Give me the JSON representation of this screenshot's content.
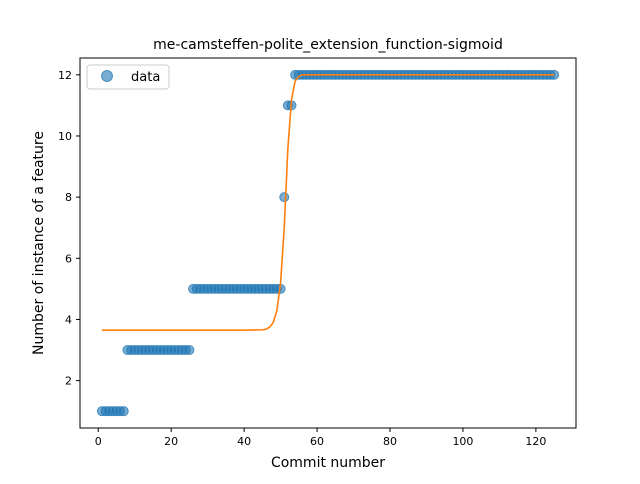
{
  "chart_data": {
    "type": "scatter",
    "title": "me-camsteffen-polite_extension_function-sigmoid",
    "xlabel": "Commit number",
    "ylabel": "Number of instance of a feature",
    "xlim": [
      -5,
      131
    ],
    "ylim": [
      0.45,
      12.55
    ],
    "x_ticks": [
      0,
      20,
      40,
      60,
      80,
      100,
      120
    ],
    "y_ticks": [
      2,
      4,
      6,
      8,
      10,
      12
    ],
    "grid": false,
    "legend": {
      "position": "top-left",
      "entries": [
        "data"
      ]
    },
    "series": [
      {
        "name": "data",
        "kind": "points",
        "color": "#1f77b4",
        "points": [
          [
            1,
            1
          ],
          [
            2,
            1
          ],
          [
            3,
            1
          ],
          [
            4,
            1
          ],
          [
            5,
            1
          ],
          [
            6,
            1
          ],
          [
            7,
            1
          ],
          [
            8,
            3
          ],
          [
            9,
            3
          ],
          [
            10,
            3
          ],
          [
            11,
            3
          ],
          [
            12,
            3
          ],
          [
            13,
            3
          ],
          [
            14,
            3
          ],
          [
            15,
            3
          ],
          [
            16,
            3
          ],
          [
            17,
            3
          ],
          [
            18,
            3
          ],
          [
            19,
            3
          ],
          [
            20,
            3
          ],
          [
            21,
            3
          ],
          [
            22,
            3
          ],
          [
            23,
            3
          ],
          [
            24,
            3
          ],
          [
            25,
            3
          ],
          [
            26,
            5
          ],
          [
            27,
            5
          ],
          [
            28,
            5
          ],
          [
            29,
            5
          ],
          [
            30,
            5
          ],
          [
            31,
            5
          ],
          [
            32,
            5
          ],
          [
            33,
            5
          ],
          [
            34,
            5
          ],
          [
            35,
            5
          ],
          [
            36,
            5
          ],
          [
            37,
            5
          ],
          [
            38,
            5
          ],
          [
            39,
            5
          ],
          [
            40,
            5
          ],
          [
            41,
            5
          ],
          [
            42,
            5
          ],
          [
            43,
            5
          ],
          [
            44,
            5
          ],
          [
            45,
            5
          ],
          [
            46,
            5
          ],
          [
            47,
            5
          ],
          [
            48,
            5
          ],
          [
            49,
            5
          ],
          [
            50,
            5
          ],
          [
            51,
            8
          ],
          [
            52,
            11
          ],
          [
            53,
            11
          ],
          [
            54,
            12
          ],
          [
            55,
            12
          ],
          [
            56,
            12
          ],
          [
            57,
            12
          ],
          [
            58,
            12
          ],
          [
            59,
            12
          ],
          [
            60,
            12
          ],
          [
            61,
            12
          ],
          [
            62,
            12
          ],
          [
            63,
            12
          ],
          [
            64,
            12
          ],
          [
            65,
            12
          ],
          [
            66,
            12
          ],
          [
            67,
            12
          ],
          [
            68,
            12
          ],
          [
            69,
            12
          ],
          [
            70,
            12
          ],
          [
            71,
            12
          ],
          [
            72,
            12
          ],
          [
            73,
            12
          ],
          [
            74,
            12
          ],
          [
            75,
            12
          ],
          [
            76,
            12
          ],
          [
            77,
            12
          ],
          [
            78,
            12
          ],
          [
            79,
            12
          ],
          [
            80,
            12
          ],
          [
            81,
            12
          ],
          [
            82,
            12
          ],
          [
            83,
            12
          ],
          [
            84,
            12
          ],
          [
            85,
            12
          ],
          [
            86,
            12
          ],
          [
            87,
            12
          ],
          [
            88,
            12
          ],
          [
            89,
            12
          ],
          [
            90,
            12
          ],
          [
            91,
            12
          ],
          [
            92,
            12
          ],
          [
            93,
            12
          ],
          [
            94,
            12
          ],
          [
            95,
            12
          ],
          [
            96,
            12
          ],
          [
            97,
            12
          ],
          [
            98,
            12
          ],
          [
            99,
            12
          ],
          [
            100,
            12
          ],
          [
            101,
            12
          ],
          [
            102,
            12
          ],
          [
            103,
            12
          ],
          [
            104,
            12
          ],
          [
            105,
            12
          ],
          [
            106,
            12
          ],
          [
            107,
            12
          ],
          [
            108,
            12
          ],
          [
            109,
            12
          ],
          [
            110,
            12
          ],
          [
            111,
            12
          ],
          [
            112,
            12
          ],
          [
            113,
            12
          ],
          [
            114,
            12
          ],
          [
            115,
            12
          ],
          [
            116,
            12
          ],
          [
            117,
            12
          ],
          [
            118,
            12
          ],
          [
            119,
            12
          ],
          [
            120,
            12
          ],
          [
            121,
            12
          ],
          [
            122,
            12
          ],
          [
            123,
            12
          ],
          [
            124,
            12
          ],
          [
            125,
            12
          ]
        ]
      },
      {
        "kind": "curve",
        "color": "#ff7f0e",
        "points": [
          [
            1,
            3.65
          ],
          [
            5,
            3.65
          ],
          [
            10,
            3.65
          ],
          [
            15,
            3.65
          ],
          [
            20,
            3.65
          ],
          [
            25,
            3.65
          ],
          [
            30,
            3.65
          ],
          [
            35,
            3.65
          ],
          [
            40,
            3.65
          ],
          [
            45,
            3.66
          ],
          [
            46,
            3.68
          ],
          [
            47,
            3.75
          ],
          [
            48,
            3.9
          ],
          [
            49,
            4.3
          ],
          [
            50,
            5.2
          ],
          [
            51,
            7.0
          ],
          [
            52,
            9.6
          ],
          [
            53,
            11.2
          ],
          [
            54,
            11.8
          ],
          [
            55,
            11.95
          ],
          [
            56,
            12.0
          ],
          [
            60,
            12.0
          ],
          [
            70,
            12.0
          ],
          [
            80,
            12.0
          ],
          [
            90,
            12.0
          ],
          [
            100,
            12.0
          ],
          [
            110,
            12.0
          ],
          [
            120,
            12.0
          ],
          [
            125,
            12.0
          ]
        ]
      }
    ]
  }
}
